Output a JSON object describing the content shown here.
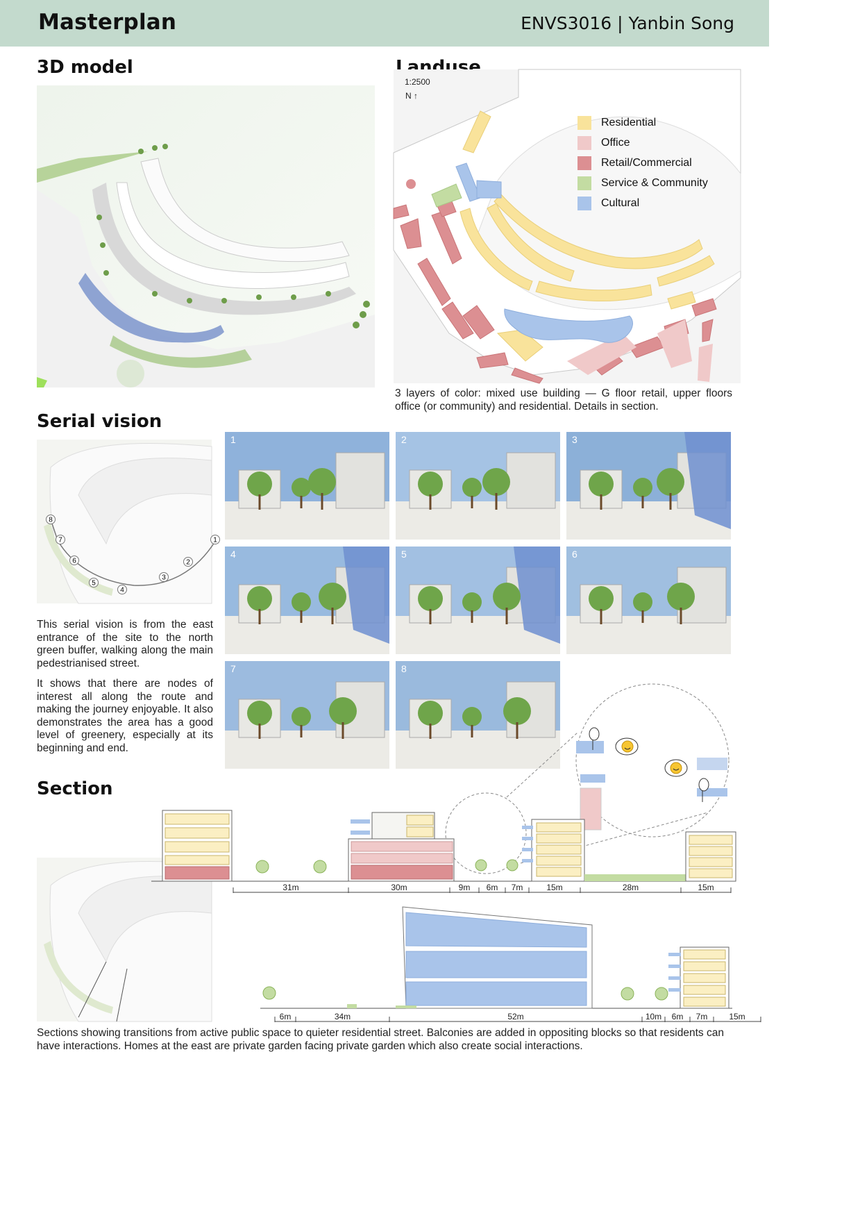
{
  "header": {
    "title": "Masterplan",
    "course_author": "ENVS3016 | Yanbin Song",
    "bg_color": "#c3dacd"
  },
  "model3d": {
    "heading": "3D model"
  },
  "landuse": {
    "heading": "Landuse",
    "scale": "1:2500",
    "north": "N ↑",
    "legend": [
      {
        "label": "Residential",
        "color": "#f9e39b"
      },
      {
        "label": "Office",
        "color": "#f0c9c9"
      },
      {
        "label": "Retail/Commercial",
        "color": "#dc8f92"
      },
      {
        "label": "Service & Community",
        "color": "#c3dca2"
      },
      {
        "label": "Cultural",
        "color": "#a9c4ea"
      }
    ],
    "caption": "3 layers of color: mixed use building — G floor retail, upper floors office (or community) and residential. Details in section."
  },
  "serial": {
    "heading": "Serial vision",
    "map_nodes": [
      "1",
      "2",
      "3",
      "4",
      "5",
      "6",
      "7",
      "8"
    ],
    "para1": "This serial vision is from the east entrance of the site to the north green buffer, walking along the main pedestrianised street.",
    "para2": "It shows that there are nodes of interest all along the route and making the journey enjoyable. It also demonstrates the area has a good level of greenery, especially at its beginning and end.",
    "photos": [
      "1",
      "2",
      "3",
      "4",
      "5",
      "6",
      "7",
      "8"
    ]
  },
  "section": {
    "heading": "Section",
    "top_dims": [
      "31m",
      "30m",
      "9m",
      "6m",
      "7m",
      "15m",
      "28m",
      "15m"
    ],
    "bottom_dims": [
      "6m",
      "34m",
      "52m",
      "10m",
      "6m",
      "7m",
      "15m"
    ],
    "caption": "Sections showing transitions from active public space to quieter residential street. Balconies are added in oppositing blocks so that residents can have interactions. Homes at the east are private garden facing private garden which also create social interactions."
  }
}
